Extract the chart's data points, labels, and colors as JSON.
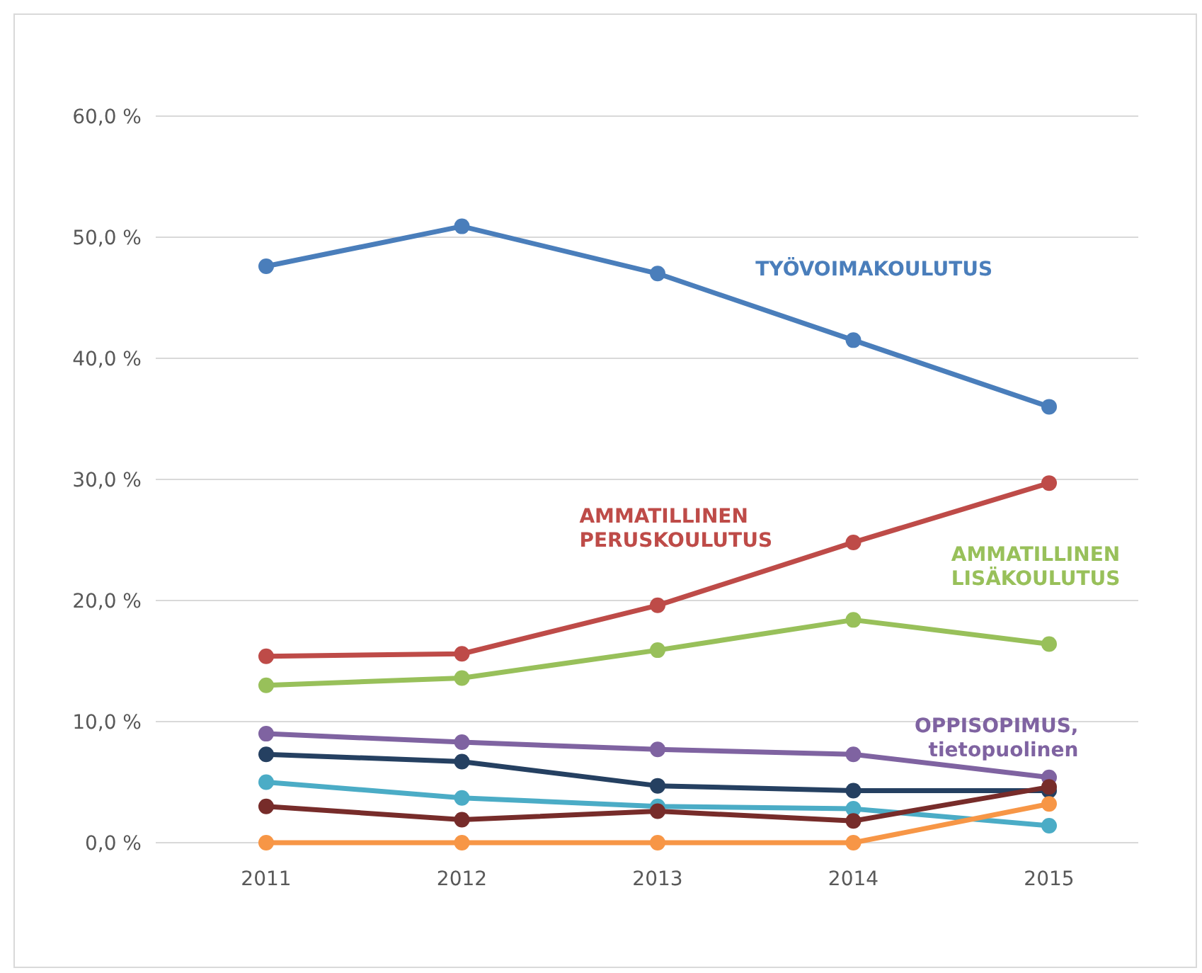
{
  "chart_data": {
    "type": "line",
    "categories": [
      "2011",
      "2012",
      "2013",
      "2014",
      "2015"
    ],
    "ylim": [
      0,
      60
    ],
    "yticks": [
      {
        "value": 0,
        "label": "0,0 %"
      },
      {
        "value": 10,
        "label": "10,0 %"
      },
      {
        "value": 20,
        "label": "20,0 %"
      },
      {
        "value": 30,
        "label": "30,0 %"
      },
      {
        "value": 40,
        "label": "40,0 %"
      },
      {
        "value": 50,
        "label": "50,0 %"
      },
      {
        "value": 60,
        "label": "60,0 %"
      }
    ],
    "grid": "y",
    "marker": "circle",
    "line_style": "solid",
    "series": [
      {
        "name": "TYÖVOIMAKOULUTUS",
        "color": "#4a7ebb",
        "values": [
          47.6,
          50.9,
          47.0,
          41.5,
          36.0
        ]
      },
      {
        "name": "AMMATILLINEN PERUSKOULUTUS",
        "color": "#be4b48",
        "values": [
          15.4,
          15.6,
          19.6,
          24.8,
          29.7
        ]
      },
      {
        "name": "AMMATILLINEN LISÄKOULUTUS",
        "color": "#98c05a",
        "values": [
          13.0,
          13.6,
          15.9,
          18.4,
          16.4
        ]
      },
      {
        "name": "OPPISOPIMUS, tietopuolinen",
        "color": "#7f63a1",
        "values": [
          9.0,
          8.3,
          7.7,
          7.3,
          5.4
        ]
      },
      {
        "color": "#254061",
        "values": [
          7.3,
          6.7,
          4.7,
          4.3,
          4.3
        ]
      },
      {
        "color": "#4bacc6",
        "values": [
          5.0,
          3.7,
          3.0,
          2.8,
          1.4
        ]
      },
      {
        "color": "#772c2a",
        "values": [
          3.0,
          1.9,
          2.6,
          1.8,
          4.6
        ]
      },
      {
        "color": "#f79646",
        "values": [
          0,
          0,
          0,
          0,
          3.2
        ]
      }
    ]
  }
}
